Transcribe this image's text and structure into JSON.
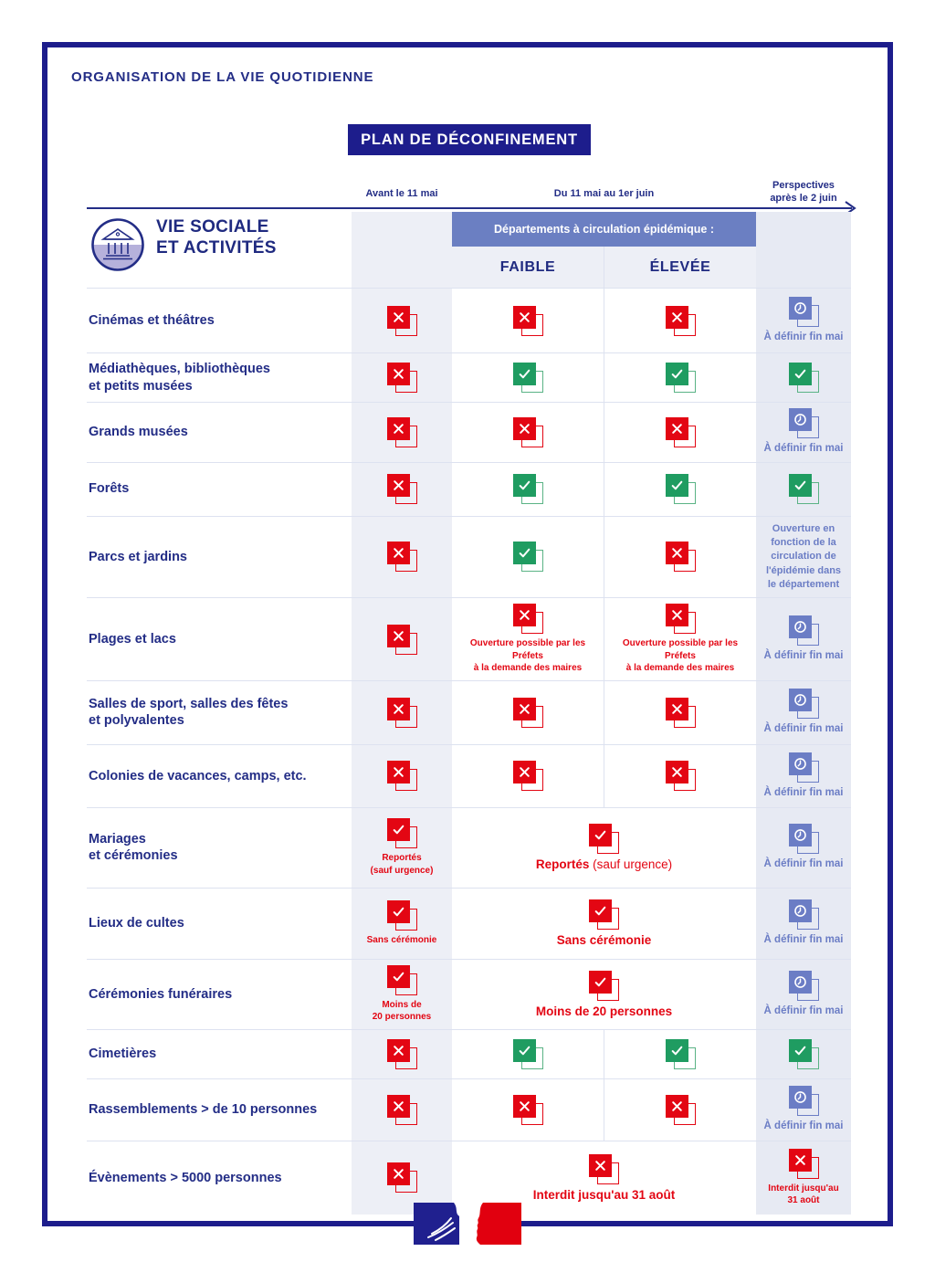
{
  "page": {
    "eyebrow": "ORGANISATION DE LA VIE QUOTIDIENNE",
    "title_badge": "PLAN DE DÉCONFINEMENT"
  },
  "timeline": {
    "col_before": "Avant le 11 mai",
    "col_during": "Du 11 mai au 1er juin",
    "col_after": "Perspectives\naprès le 2 juin"
  },
  "section": {
    "icon": "classical-building-icon",
    "title": "VIE SOCIALE\nET ACTIVITÉS",
    "sub_banner": "Départements à circulation épidémique :",
    "sub_cols": [
      "FAIBLE",
      "ÉLEVÉE"
    ]
  },
  "colors": {
    "navy": "#1d1d8c",
    "text_navy": "#232d86",
    "red": "#e30613",
    "green": "#1f9c61",
    "periwinkle": "#6b7dc5",
    "banner_blue": "#6b7fc2",
    "band_before": "#edeff6",
    "band_perspectives": "#e7eaf3"
  },
  "icon_legend": {
    "cross-red": "interdit",
    "check-green": "autorisé",
    "check-red": "autorisé avec restriction",
    "clock": "à définir"
  },
  "rows": [
    {
      "label": "Cinémas et théâtres",
      "before": {
        "icon": "cross-red"
      },
      "faible": {
        "icon": "cross-red"
      },
      "elevee": {
        "icon": "cross-red"
      },
      "after": {
        "icon": "clock",
        "caption": "À définir fin mai",
        "caption_color": "blue"
      }
    },
    {
      "label": "Médiathèques, bibliothèques\net petits musées",
      "before": {
        "icon": "cross-red"
      },
      "faible": {
        "icon": "check-green"
      },
      "elevee": {
        "icon": "check-green"
      },
      "after": {
        "icon": "check-green"
      }
    },
    {
      "label": "Grands musées",
      "before": {
        "icon": "cross-red"
      },
      "faible": {
        "icon": "cross-red"
      },
      "elevee": {
        "icon": "cross-red"
      },
      "after": {
        "icon": "clock",
        "caption": "À définir fin mai",
        "caption_color": "blue"
      }
    },
    {
      "label": "Forêts",
      "before": {
        "icon": "cross-red"
      },
      "faible": {
        "icon": "check-green"
      },
      "elevee": {
        "icon": "check-green"
      },
      "after": {
        "icon": "check-green"
      }
    },
    {
      "label": "Parcs et jardins",
      "before": {
        "icon": "cross-red"
      },
      "faible": {
        "icon": "check-green"
      },
      "elevee": {
        "icon": "cross-red"
      },
      "after": {
        "text": "Ouverture en\nfonction de la\ncirculation de\nl'épidémie dans\nle département"
      }
    },
    {
      "label": "Plages et lacs",
      "before": {
        "icon": "cross-red"
      },
      "faible": {
        "icon": "cross-red",
        "caption": "Ouverture possible par les Préfets\nà la demande des maires",
        "caption_color": "red"
      },
      "elevee": {
        "icon": "cross-red",
        "caption": "Ouverture possible par les Préfets\nà la demande des maires",
        "caption_color": "red"
      },
      "after": {
        "icon": "clock",
        "caption": "À définir fin mai",
        "caption_color": "blue"
      }
    },
    {
      "label": "Salles de sport, salles des fêtes\net polyvalentes",
      "before": {
        "icon": "cross-red"
      },
      "faible": {
        "icon": "cross-red"
      },
      "elevee": {
        "icon": "cross-red"
      },
      "after": {
        "icon": "clock",
        "caption": "À définir fin mai",
        "caption_color": "blue"
      }
    },
    {
      "label": "Colonies de vacances, camps, etc.",
      "before": {
        "icon": "cross-red"
      },
      "faible": {
        "icon": "cross-red"
      },
      "elevee": {
        "icon": "cross-red"
      },
      "after": {
        "icon": "clock",
        "caption": "À définir fin mai",
        "caption_color": "blue"
      }
    },
    {
      "label": "Mariages\net cérémonies",
      "before": {
        "icon": "check-red",
        "caption": "Reportés\n(sauf urgence)",
        "caption_color": "red"
      },
      "merged": {
        "icon": "check-red",
        "caption_strong": "Reportés",
        "caption_normal": " (sauf urgence)"
      },
      "after": {
        "icon": "clock",
        "caption": "À définir fin mai",
        "caption_color": "blue"
      }
    },
    {
      "label": "Lieux de cultes",
      "before": {
        "icon": "check-red",
        "caption": "Sans cérémonie",
        "caption_color": "red"
      },
      "merged": {
        "icon": "check-red",
        "caption_strong": "Sans cérémonie",
        "caption_normal": ""
      },
      "after": {
        "icon": "clock",
        "caption": "À définir fin mai",
        "caption_color": "blue"
      }
    },
    {
      "label": "Cérémonies funéraires",
      "before": {
        "icon": "check-red",
        "caption": "Moins de\n20 personnes",
        "caption_color": "red"
      },
      "merged": {
        "icon": "check-red",
        "caption_strong": "Moins de 20 personnes",
        "caption_normal": ""
      },
      "after": {
        "icon": "clock",
        "caption": "À définir fin mai",
        "caption_color": "blue"
      }
    },
    {
      "label": "Cimetières",
      "before": {
        "icon": "cross-red"
      },
      "faible": {
        "icon": "check-green"
      },
      "elevee": {
        "icon": "check-green"
      },
      "after": {
        "icon": "check-green"
      }
    },
    {
      "label": "Rassemblements > de 10 personnes",
      "before": {
        "icon": "cross-red"
      },
      "faible": {
        "icon": "cross-red"
      },
      "elevee": {
        "icon": "cross-red"
      },
      "after": {
        "icon": "clock",
        "caption": "À définir fin mai",
        "caption_color": "blue"
      }
    },
    {
      "label": "Évènements > 5000 personnes",
      "before": {
        "icon": "cross-red"
      },
      "merged": {
        "icon": "cross-red",
        "caption_strong": "Interdit jusqu'au 31 août",
        "caption_normal": ""
      },
      "after": {
        "icon": "cross-red",
        "caption": "Interdit jusqu'au\n31 août",
        "caption_color": "red"
      }
    }
  ],
  "footer": {
    "logo": "french-republic-logo"
  }
}
